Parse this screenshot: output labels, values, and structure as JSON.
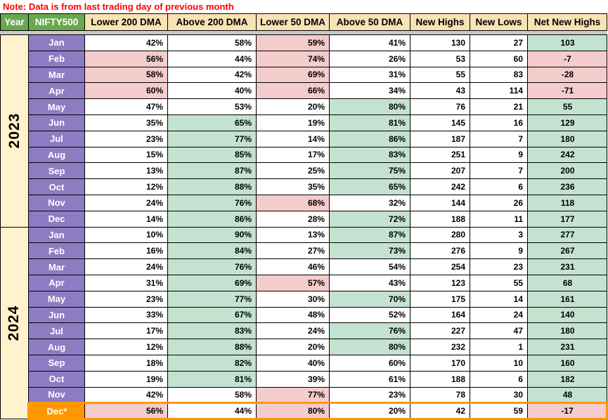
{
  "note": "Note: Data is from last trading day of previous month",
  "colors": {
    "note_red": "#FF0000",
    "header_green": "#6AA84F",
    "header_tan": "#F8E3B4",
    "month_purple": "#8D7CC2",
    "year_cream": "#FFF2CC",
    "cell_pink": "#F4CCCC",
    "cell_green": "#C4E2D0",
    "dec_orange": "#FF9800",
    "divider_gray": "#C9C9C9"
  },
  "table": {
    "headers": [
      {
        "label": "Year",
        "style": "green"
      },
      {
        "label": "NIFTY500",
        "style": "green"
      },
      {
        "label": "Lower 200 DMA",
        "style": "tan"
      },
      {
        "label": "Above 200 DMA",
        "style": "tan"
      },
      {
        "label": "Lower 50 DMA",
        "style": "tan"
      },
      {
        "label": "Above 50 DMA",
        "style": "tan"
      },
      {
        "label": "New Highs",
        "style": "tan"
      },
      {
        "label": "New Lows",
        "style": "tan"
      },
      {
        "label": "Net New Highs",
        "style": "tan"
      }
    ],
    "years": [
      {
        "year": "2023",
        "rows": [
          {
            "month": "Jan",
            "cells": [
              {
                "v": "42%",
                "c": "w"
              },
              {
                "v": "58%",
                "c": "w"
              },
              {
                "v": "59%",
                "c": "p"
              },
              {
                "v": "41%",
                "c": "w"
              },
              {
                "v": "130",
                "c": "w"
              },
              {
                "v": "27",
                "c": "w"
              },
              {
                "v": "103",
                "c": "g"
              }
            ]
          },
          {
            "month": "Feb",
            "cells": [
              {
                "v": "56%",
                "c": "p"
              },
              {
                "v": "44%",
                "c": "w"
              },
              {
                "v": "74%",
                "c": "p"
              },
              {
                "v": "26%",
                "c": "w"
              },
              {
                "v": "53",
                "c": "w"
              },
              {
                "v": "60",
                "c": "w"
              },
              {
                "v": "-7",
                "c": "p"
              }
            ]
          },
          {
            "month": "Mar",
            "cells": [
              {
                "v": "58%",
                "c": "p"
              },
              {
                "v": "42%",
                "c": "w"
              },
              {
                "v": "69%",
                "c": "p"
              },
              {
                "v": "31%",
                "c": "w"
              },
              {
                "v": "55",
                "c": "w"
              },
              {
                "v": "83",
                "c": "w"
              },
              {
                "v": "-28",
                "c": "p"
              }
            ]
          },
          {
            "month": "Apr",
            "cells": [
              {
                "v": "60%",
                "c": "p"
              },
              {
                "v": "40%",
                "c": "w"
              },
              {
                "v": "66%",
                "c": "p"
              },
              {
                "v": "34%",
                "c": "w"
              },
              {
                "v": "43",
                "c": "w"
              },
              {
                "v": "114",
                "c": "w"
              },
              {
                "v": "-71",
                "c": "p"
              }
            ]
          },
          {
            "month": "May",
            "cells": [
              {
                "v": "47%",
                "c": "w"
              },
              {
                "v": "53%",
                "c": "w"
              },
              {
                "v": "20%",
                "c": "w"
              },
              {
                "v": "80%",
                "c": "g"
              },
              {
                "v": "76",
                "c": "w"
              },
              {
                "v": "21",
                "c": "w"
              },
              {
                "v": "55",
                "c": "g"
              }
            ]
          },
          {
            "month": "Jun",
            "cells": [
              {
                "v": "35%",
                "c": "w"
              },
              {
                "v": "65%",
                "c": "g"
              },
              {
                "v": "19%",
                "c": "w"
              },
              {
                "v": "81%",
                "c": "g"
              },
              {
                "v": "145",
                "c": "w"
              },
              {
                "v": "16",
                "c": "w"
              },
              {
                "v": "129",
                "c": "g"
              }
            ]
          },
          {
            "month": "Jul",
            "cells": [
              {
                "v": "23%",
                "c": "w"
              },
              {
                "v": "77%",
                "c": "g"
              },
              {
                "v": "14%",
                "c": "w"
              },
              {
                "v": "86%",
                "c": "g"
              },
              {
                "v": "187",
                "c": "w"
              },
              {
                "v": "7",
                "c": "w"
              },
              {
                "v": "180",
                "c": "g"
              }
            ]
          },
          {
            "month": "Aug",
            "cells": [
              {
                "v": "15%",
                "c": "w"
              },
              {
                "v": "85%",
                "c": "g"
              },
              {
                "v": "17%",
                "c": "w"
              },
              {
                "v": "83%",
                "c": "g"
              },
              {
                "v": "251",
                "c": "w"
              },
              {
                "v": "9",
                "c": "w"
              },
              {
                "v": "242",
                "c": "g"
              }
            ]
          },
          {
            "month": "Sep",
            "cells": [
              {
                "v": "13%",
                "c": "w"
              },
              {
                "v": "87%",
                "c": "g"
              },
              {
                "v": "25%",
                "c": "w"
              },
              {
                "v": "75%",
                "c": "g"
              },
              {
                "v": "207",
                "c": "w"
              },
              {
                "v": "7",
                "c": "w"
              },
              {
                "v": "200",
                "c": "g"
              }
            ]
          },
          {
            "month": "Oct",
            "cells": [
              {
                "v": "12%",
                "c": "w"
              },
              {
                "v": "88%",
                "c": "g"
              },
              {
                "v": "35%",
                "c": "w"
              },
              {
                "v": "65%",
                "c": "g"
              },
              {
                "v": "242",
                "c": "w"
              },
              {
                "v": "6",
                "c": "w"
              },
              {
                "v": "236",
                "c": "g"
              }
            ]
          },
          {
            "month": "Nov",
            "cells": [
              {
                "v": "24%",
                "c": "w"
              },
              {
                "v": "76%",
                "c": "g"
              },
              {
                "v": "68%",
                "c": "p"
              },
              {
                "v": "32%",
                "c": "w"
              },
              {
                "v": "144",
                "c": "w"
              },
              {
                "v": "26",
                "c": "w"
              },
              {
                "v": "118",
                "c": "g"
              }
            ]
          },
          {
            "month": "Dec",
            "cells": [
              {
                "v": "14%",
                "c": "w"
              },
              {
                "v": "86%",
                "c": "g"
              },
              {
                "v": "28%",
                "c": "w"
              },
              {
                "v": "72%",
                "c": "g"
              },
              {
                "v": "188",
                "c": "w"
              },
              {
                "v": "11",
                "c": "w"
              },
              {
                "v": "177",
                "c": "g"
              }
            ]
          }
        ]
      },
      {
        "year": "2024",
        "rows": [
          {
            "month": "Jan",
            "cells": [
              {
                "v": "10%",
                "c": "w"
              },
              {
                "v": "90%",
                "c": "g"
              },
              {
                "v": "13%",
                "c": "w"
              },
              {
                "v": "87%",
                "c": "g"
              },
              {
                "v": "280",
                "c": "w"
              },
              {
                "v": "3",
                "c": "w"
              },
              {
                "v": "277",
                "c": "g"
              }
            ]
          },
          {
            "month": "Feb",
            "cells": [
              {
                "v": "16%",
                "c": "w"
              },
              {
                "v": "84%",
                "c": "g"
              },
              {
                "v": "27%",
                "c": "w"
              },
              {
                "v": "73%",
                "c": "g"
              },
              {
                "v": "276",
                "c": "w"
              },
              {
                "v": "9",
                "c": "w"
              },
              {
                "v": "267",
                "c": "g"
              }
            ]
          },
          {
            "month": "Mar",
            "cells": [
              {
                "v": "24%",
                "c": "w"
              },
              {
                "v": "76%",
                "c": "g"
              },
              {
                "v": "46%",
                "c": "w"
              },
              {
                "v": "54%",
                "c": "w"
              },
              {
                "v": "254",
                "c": "w"
              },
              {
                "v": "23",
                "c": "w"
              },
              {
                "v": "231",
                "c": "g"
              }
            ]
          },
          {
            "month": "Apr",
            "cells": [
              {
                "v": "31%",
                "c": "w"
              },
              {
                "v": "69%",
                "c": "g"
              },
              {
                "v": "57%",
                "c": "p"
              },
              {
                "v": "43%",
                "c": "w"
              },
              {
                "v": "123",
                "c": "w"
              },
              {
                "v": "55",
                "c": "w"
              },
              {
                "v": "68",
                "c": "g"
              }
            ]
          },
          {
            "month": "May",
            "cells": [
              {
                "v": "23%",
                "c": "w"
              },
              {
                "v": "77%",
                "c": "g"
              },
              {
                "v": "30%",
                "c": "w"
              },
              {
                "v": "70%",
                "c": "g"
              },
              {
                "v": "175",
                "c": "w"
              },
              {
                "v": "14",
                "c": "w"
              },
              {
                "v": "161",
                "c": "g"
              }
            ]
          },
          {
            "month": "Jun",
            "cells": [
              {
                "v": "33%",
                "c": "w"
              },
              {
                "v": "67%",
                "c": "g"
              },
              {
                "v": "48%",
                "c": "w"
              },
              {
                "v": "52%",
                "c": "w"
              },
              {
                "v": "164",
                "c": "w"
              },
              {
                "v": "24",
                "c": "w"
              },
              {
                "v": "140",
                "c": "g"
              }
            ]
          },
          {
            "month": "Jul",
            "cells": [
              {
                "v": "17%",
                "c": "w"
              },
              {
                "v": "83%",
                "c": "g"
              },
              {
                "v": "24%",
                "c": "w"
              },
              {
                "v": "76%",
                "c": "g"
              },
              {
                "v": "227",
                "c": "w"
              },
              {
                "v": "47",
                "c": "w"
              },
              {
                "v": "180",
                "c": "g"
              }
            ]
          },
          {
            "month": "Aug",
            "cells": [
              {
                "v": "12%",
                "c": "w"
              },
              {
                "v": "88%",
                "c": "g"
              },
              {
                "v": "20%",
                "c": "w"
              },
              {
                "v": "80%",
                "c": "g"
              },
              {
                "v": "232",
                "c": "w"
              },
              {
                "v": "1",
                "c": "w"
              },
              {
                "v": "231",
                "c": "g"
              }
            ]
          },
          {
            "month": "Sep",
            "cells": [
              {
                "v": "18%",
                "c": "w"
              },
              {
                "v": "82%",
                "c": "g"
              },
              {
                "v": "40%",
                "c": "w"
              },
              {
                "v": "60%",
                "c": "w"
              },
              {
                "v": "170",
                "c": "w"
              },
              {
                "v": "10",
                "c": "w"
              },
              {
                "v": "160",
                "c": "g"
              }
            ]
          },
          {
            "month": "Oct",
            "cells": [
              {
                "v": "19%",
                "c": "w"
              },
              {
                "v": "81%",
                "c": "g"
              },
              {
                "v": "39%",
                "c": "w"
              },
              {
                "v": "61%",
                "c": "w"
              },
              {
                "v": "188",
                "c": "w"
              },
              {
                "v": "6",
                "c": "w"
              },
              {
                "v": "182",
                "c": "g"
              }
            ]
          },
          {
            "month": "Nov",
            "cells": [
              {
                "v": "42%",
                "c": "w"
              },
              {
                "v": "58%",
                "c": "w"
              },
              {
                "v": "77%",
                "c": "p"
              },
              {
                "v": "23%",
                "c": "w"
              },
              {
                "v": "78",
                "c": "w"
              },
              {
                "v": "30",
                "c": "w"
              },
              {
                "v": "48",
                "c": "g"
              }
            ]
          },
          {
            "month": "Dec*",
            "highlight": true,
            "cells": [
              {
                "v": "56%",
                "c": "p"
              },
              {
                "v": "44%",
                "c": "w"
              },
              {
                "v": "80%",
                "c": "p"
              },
              {
                "v": "20%",
                "c": "w"
              },
              {
                "v": "42",
                "c": "w"
              },
              {
                "v": "59",
                "c": "w"
              },
              {
                "v": "-17",
                "c": "p"
              }
            ]
          }
        ]
      }
    ]
  }
}
